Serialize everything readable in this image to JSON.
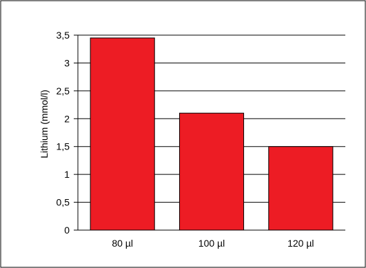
{
  "chart_data": {
    "type": "bar",
    "categories": [
      "80 µl",
      "100 µl",
      "120 µl"
    ],
    "values": [
      3.45,
      2.1,
      1.5
    ],
    "ylabel": "Lithium (mmol/l)",
    "xlabel": "",
    "ylim": [
      0,
      3.5
    ],
    "yticks": [
      0,
      0.5,
      1,
      1.5,
      2,
      2.5,
      3,
      3.5
    ],
    "ytick_labels": [
      "0",
      "0,5",
      "1",
      "1,5",
      "2",
      "2,5",
      "3",
      "3,5"
    ],
    "grid": true,
    "bar_color": "#ed1c24",
    "bar_edge_color": "#000000",
    "grid_color": "#000000"
  }
}
